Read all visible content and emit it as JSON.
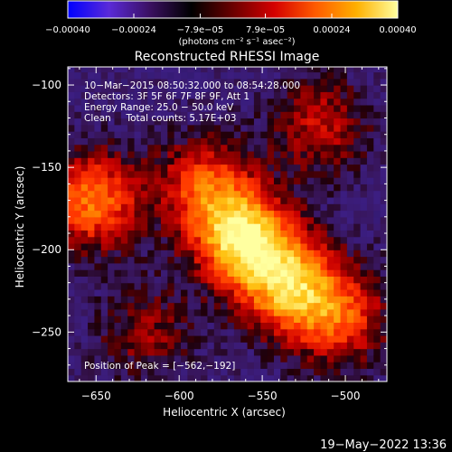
{
  "chart_data": {
    "type": "heatmap",
    "title": "Reconstructed RHESSI Image",
    "xlabel": "Heliocentric X (arcsec)",
    "ylabel": "Heliocentric Y (arcsec)",
    "xlim": [
      -667,
      -475
    ],
    "ylim": [
      -280,
      -89
    ],
    "x_ticks": [
      -650,
      -600,
      -550,
      -500
    ],
    "y_ticks": [
      -100,
      -150,
      -200,
      -250
    ],
    "x_tick_labels": [
      "−650",
      "−600",
      "−550",
      "−500"
    ],
    "y_tick_labels": [
      "−100",
      "−150",
      "−200",
      "−250"
    ],
    "colorbar": {
      "range": [
        -0.0004,
        0.0004
      ],
      "ticks": [
        -0.0004,
        -0.00024,
        -7.9e-05,
        7.9e-05,
        0.00024,
        0.0004
      ],
      "tick_labels": [
        "−0.00040",
        "−0.00024",
        "−7.9e−05",
        "7.9e−05",
        "0.00024",
        "0.00040"
      ],
      "unit_label": "(photons cm⁻² s⁻¹ asec⁻²)",
      "colors": [
        "#0000ff",
        "#5a2ad8",
        "#3a1060",
        "#000000",
        "#6a0000",
        "#d40000",
        "#ff5a00",
        "#ffb000",
        "#ffffa0"
      ]
    },
    "sources": [
      {
        "x": -562,
        "y": -192,
        "peak": 0.0004
      },
      {
        "x": -535,
        "y": -220,
        "peak": 0.00033
      },
      {
        "x": -652,
        "y": -170,
        "peak": 0.00028
      },
      {
        "x": -585,
        "y": -160,
        "peak": 0.00022
      },
      {
        "x": -505,
        "y": -240,
        "peak": 0.00024
      },
      {
        "x": -515,
        "y": -125,
        "peak": 0.00016
      },
      {
        "x": -620,
        "y": -250,
        "peak": 0.00012
      }
    ],
    "annotations": [
      "10−Mar−2015 08:50:32.000 to 08:54:28.000",
      "Detectors: 3F 5F 6F 7F 8F 9F, Att 1",
      "Energy Range: 25.0 − 50.0 keV",
      "Clean     Total counts: 5.17E+03"
    ],
    "peak_label": "Position of Peak = [−562,−192]"
  },
  "footer": {
    "timestamp": "19−May−2022 13:36"
  }
}
